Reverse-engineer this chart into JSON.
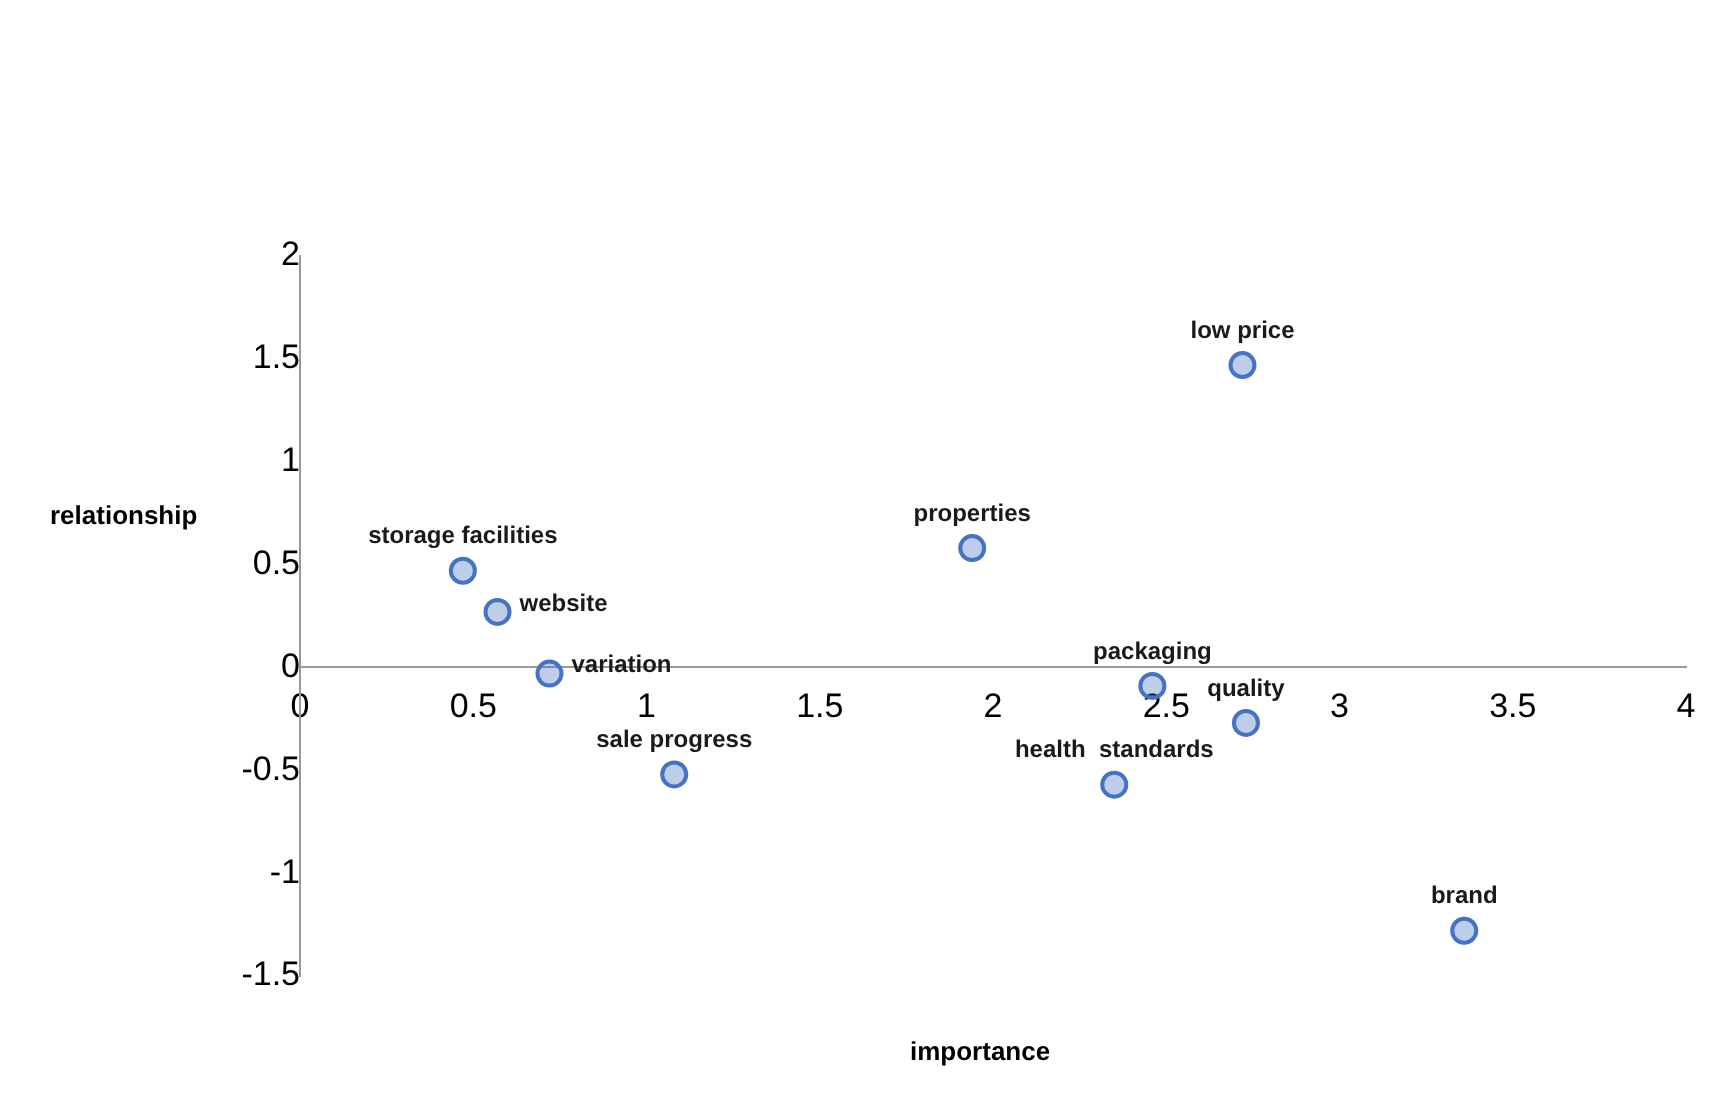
{
  "chart_data": {
    "type": "scatter",
    "xlabel": "importance",
    "ylabel": "relationship",
    "x": [
      0.47,
      0.57,
      0.72,
      1.08,
      1.94,
      2.72,
      2.46,
      2.73,
      2.35,
      3.36
    ],
    "series": [
      {
        "color": "#4472c4",
        "values": [
          0.47,
          0.27,
          -0.03,
          -0.52,
          0.58,
          1.47,
          -0.09,
          -0.27,
          -0.57,
          -1.28
        ]
      }
    ],
    "annotations": [
      {
        "text": "storage facilities",
        "x": 0.47,
        "y": 0.47
      },
      {
        "text": "website",
        "x": 0.57,
        "y": 0.27
      },
      {
        "text": "variation",
        "x": 0.72,
        "y": -0.03
      },
      {
        "text": "sale progress",
        "x": 1.08,
        "y": -0.52
      },
      {
        "text": "properties",
        "x": 1.94,
        "y": 0.58
      },
      {
        "text": "low price",
        "x": 2.72,
        "y": 1.47
      },
      {
        "text": "packaging",
        "x": 2.46,
        "y": -0.09
      },
      {
        "text": "quality",
        "x": 2.73,
        "y": -0.27
      },
      {
        "text": "health  standards",
        "x": 2.35,
        "y": -0.57
      },
      {
        "text": "brand",
        "x": 3.36,
        "y": -1.28
      }
    ],
    "xlim": [
      0,
      4
    ],
    "xticks": [
      0,
      0.5,
      1,
      1.5,
      2,
      2.5,
      3,
      3.5,
      4
    ],
    "ylim": [
      -1.5,
      2
    ],
    "yticks": [
      -1.5,
      -1,
      -0.5,
      0,
      0.5,
      1,
      1.5,
      2
    ],
    "grid": false,
    "legend": false,
    "marker": "circle"
  }
}
